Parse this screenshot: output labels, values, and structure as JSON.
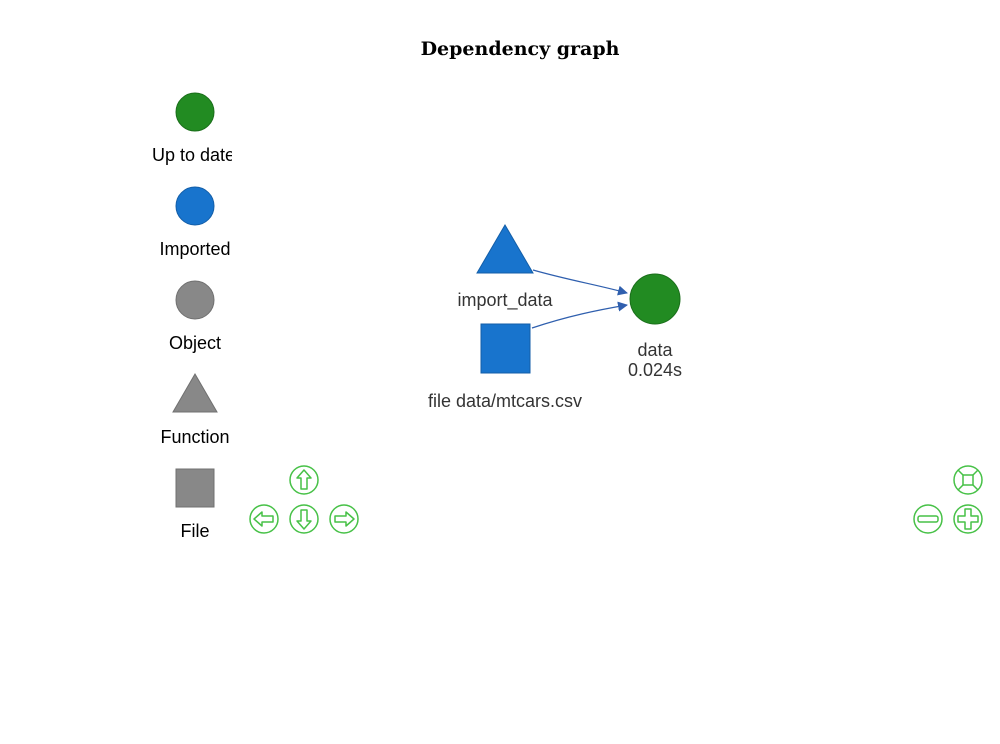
{
  "title": "Dependency graph",
  "legend": {
    "up_to_date": "Up to date",
    "imported": "Imported",
    "object": "Object",
    "function": "Function",
    "file": "File"
  },
  "nodes": {
    "import_data": "import_data",
    "file": "file data/mtcars.csv",
    "data_name": "data",
    "data_time": "0.024s"
  },
  "edges": [
    {
      "from": "import_data",
      "to": "data"
    },
    {
      "from": "file data/mtcars.csv",
      "to": "data"
    }
  ],
  "colors": {
    "up_to_date": "#228b22",
    "imported": "#1874cd",
    "neutral": "#888888",
    "edge": "#2f5fae",
    "nav": "#47c147"
  },
  "controls": {
    "nav_up": "arrow-up-icon",
    "nav_left": "arrow-left-icon",
    "nav_down": "arrow-down-icon",
    "nav_right": "arrow-right-icon",
    "zoom_extent": "zoom-extent-icon",
    "zoom_out": "zoom-out-icon",
    "zoom_in": "zoom-in-icon"
  }
}
